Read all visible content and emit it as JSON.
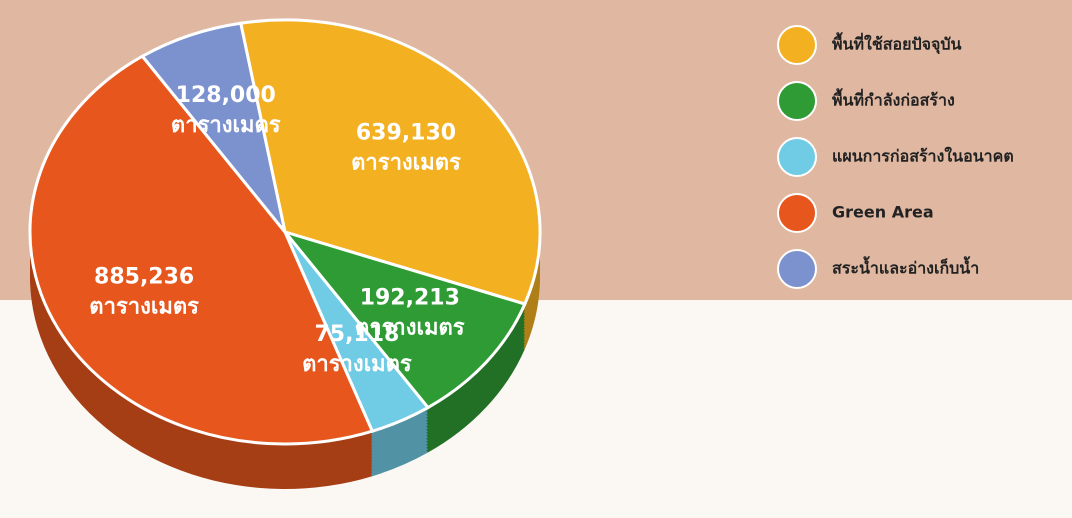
{
  "chart_data": {
    "type": "pie",
    "categories": [
      "พื้นที่ใช้สอยปัจจุบัน",
      "พื้นที่กำลังก่อสร้าง",
      "แผนการก่อสร้างในอนาคต",
      "Green Area",
      "สระน้ำและอ่างเก็บน้ำ"
    ],
    "values": [
      639130,
      192213,
      75118,
      885236,
      128000
    ],
    "value_labels": [
      "639,130",
      "192,213",
      "75,118",
      "885,236",
      "128,000"
    ],
    "unit": "ตารางเมตร",
    "colors": [
      "#f3b021",
      "#2f9b35",
      "#70cbe5",
      "#e6561d",
      "#7c92cf"
    ],
    "legend": "right"
  }
}
